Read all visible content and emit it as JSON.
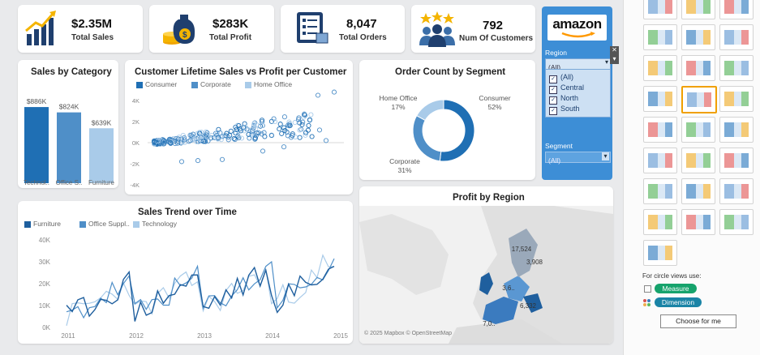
{
  "kpis": [
    {
      "value": "$2.35M",
      "label": "Total Sales",
      "icon": "sales-growth-icon"
    },
    {
      "value": "$283K",
      "label": "Total Profit",
      "icon": "money-bag-icon"
    },
    {
      "value": "8,047",
      "label": "Total Orders",
      "icon": "order-list-icon"
    },
    {
      "value": "792",
      "label": "Num Of Customers",
      "icon": "customers-icon"
    }
  ],
  "filters": {
    "logo_text": "amazon",
    "region_label": "Region",
    "region_value": "(All)",
    "region_options": [
      "(All)",
      "Central",
      "North",
      "South"
    ],
    "segment_label": "Segment",
    "segment_value": "(All)"
  },
  "chart_data": [
    {
      "type": "bar",
      "title": "Sales by Category",
      "categories": [
        "Technol..",
        "Office S..",
        "Furniture"
      ],
      "values": [
        886,
        824,
        639
      ],
      "data_labels": [
        "$886K",
        "$824K",
        "$639K"
      ],
      "colors": [
        "#1f6fb4",
        "#4f8fc8",
        "#a9cbe9"
      ]
    },
    {
      "type": "scatter",
      "title": "Customer Lifetime Sales vs Profit per Customer",
      "series": [
        {
          "name": "Consumer"
        },
        {
          "name": "Corporate"
        },
        {
          "name": "Home Office"
        }
      ],
      "ytick_labels": [
        "4K",
        "2K",
        "0K",
        "-2K",
        "-4K"
      ],
      "ylim": [
        -4000,
        4000
      ]
    },
    {
      "type": "pie",
      "title": "Order Count by Segment",
      "slices": [
        {
          "name": "Consumer",
          "value": 52,
          "label": "52%",
          "color": "#1f6fb4"
        },
        {
          "name": "Corporate",
          "value": 31,
          "label": "31%",
          "color": "#4f8fc8"
        },
        {
          "name": "Home Office",
          "value": 17,
          "label": "17%",
          "color": "#a9cbe9"
        }
      ]
    },
    {
      "type": "line",
      "title": "Sales Trend over Time",
      "series": [
        {
          "name": "Furniture"
        },
        {
          "name": "Office Suppl.."
        },
        {
          "name": "Technology"
        }
      ],
      "x_labels": [
        "2011",
        "2012",
        "2013",
        "2014",
        "2015"
      ],
      "ytick_labels": [
        "40K",
        "30K",
        "20K",
        "10K",
        "0K"
      ],
      "ylim": [
        0,
        40000
      ]
    },
    {
      "type": "map",
      "title": "Profit by Region",
      "labels": [
        "17,524",
        "3,908",
        "3,6..",
        "6,332",
        "7,0.."
      ],
      "attribution": "© 2025 Mapbox © OpenStreetMap"
    }
  ],
  "sidebar": {
    "circle_views_label": "For circle views use:",
    "measure_label": "Measure",
    "dimension_label": "Dimension",
    "choose_button": "Choose for me"
  },
  "colors": {
    "dark": "#1f6fb4",
    "mid": "#4f8fc8",
    "light": "#a9cbe9",
    "panel": "#3d8ed6"
  }
}
